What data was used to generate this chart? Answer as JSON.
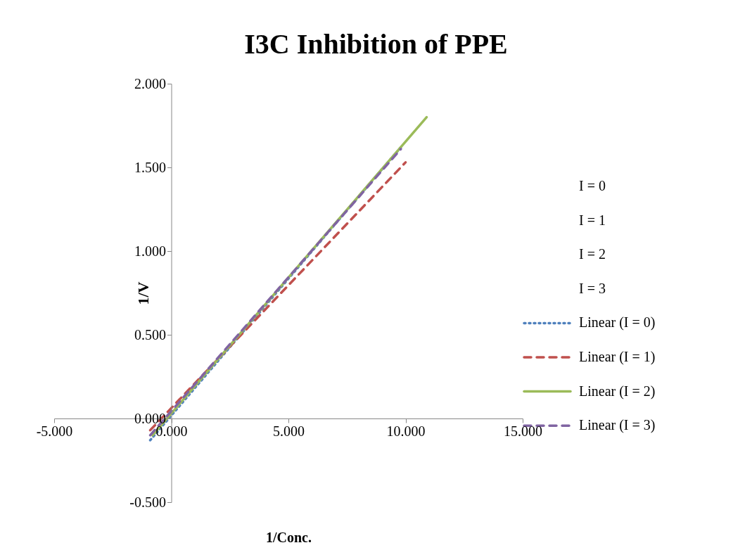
{
  "chart_data": {
    "type": "line",
    "title": "I3C Inhibition of PPE",
    "xlabel": "1/Conc.",
    "ylabel": "1/V",
    "xlim": [
      -5,
      15
    ],
    "xticks": [
      {
        "value": -5,
        "label": "-5.000"
      },
      {
        "value": 0,
        "label": "0.000"
      },
      {
        "value": 5,
        "label": "5.000"
      },
      {
        "value": 10,
        "label": "10.000"
      },
      {
        "value": 15,
        "label": "15.000"
      }
    ],
    "ylim": [
      -0.5,
      2.0
    ],
    "yticks": [
      {
        "value": -0.5,
        "label": "-0.500"
      },
      {
        "value": 0,
        "label": "0.000"
      },
      {
        "value": 0.5,
        "label": "0.500"
      },
      {
        "value": 1.0,
        "label": "1.000"
      },
      {
        "value": 1.5,
        "label": "1.500"
      },
      {
        "value": 2.0,
        "label": "2.000"
      }
    ],
    "grid": false,
    "legend": "right",
    "series": [
      {
        "name": "I = 0",
        "type": "scatter",
        "marker": "none"
      },
      {
        "name": "I = 1",
        "type": "scatter",
        "marker": "none"
      },
      {
        "name": "I = 2",
        "type": "scatter",
        "marker": "none"
      },
      {
        "name": "I = 3",
        "type": "scatter",
        "marker": "none"
      },
      {
        "name": "Linear (I = 0)",
        "line_style": "dotted",
        "color": "#4f81bd",
        "x": [
          -0.9,
          9.8
        ],
        "values": [
          -0.13,
          1.62
        ]
      },
      {
        "name": "Linear (I = 1)",
        "line_style": "dashed",
        "color": "#c0504d",
        "x": [
          -0.9,
          10.0
        ],
        "values": [
          -0.07,
          1.53
        ]
      },
      {
        "name": "Linear (I = 2)",
        "line_style": "solid",
        "color": "#9bbb59",
        "x": [
          -0.8,
          10.9
        ],
        "values": [
          -0.1,
          1.8
        ]
      },
      {
        "name": "Linear (I = 3)",
        "line_style": "dashed",
        "color": "#8064a2",
        "x": [
          -0.9,
          9.8
        ],
        "values": [
          -0.1,
          1.61
        ]
      }
    ]
  }
}
